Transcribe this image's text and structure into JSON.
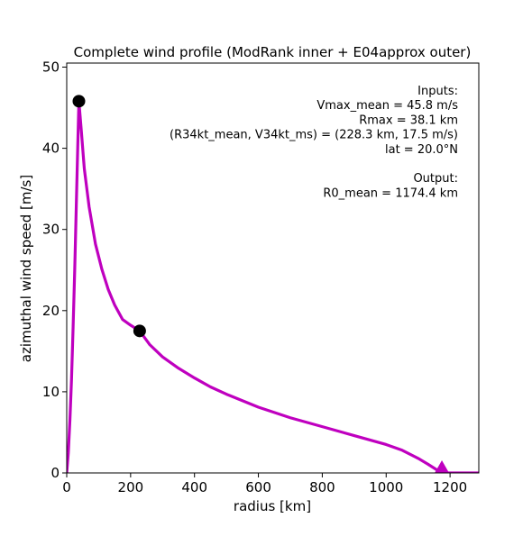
{
  "chart_data": {
    "type": "line",
    "title": "Complete wind profile (ModRank inner + E04approx outer)",
    "xlabel": "radius [km]",
    "ylabel": "azimuthal wind speed [m/s]",
    "xlim": [
      0,
      1290
    ],
    "ylim": [
      0,
      50.5
    ],
    "xticks": [
      0,
      200,
      400,
      600,
      800,
      1000,
      1200
    ],
    "yticks": [
      0,
      10,
      20,
      30,
      40,
      50
    ],
    "grid": false,
    "line_color": "#bf00bf",
    "marker_color": "#000000",
    "series": [
      {
        "x": [
          0,
          5,
          10,
          15,
          20,
          25,
          30,
          35,
          38.1,
          45,
          55,
          70,
          90,
          110,
          130,
          150,
          175,
          200,
          228.3,
          260,
          300,
          350,
          400,
          450,
          500,
          600,
          700,
          800,
          900,
          1000,
          1050,
          1100,
          1130,
          1160,
          1174.4,
          1200,
          1250,
          1290
        ],
        "y": [
          0,
          2.5,
          6.5,
          11.5,
          18,
          25,
          33,
          41,
          45.8,
          42.5,
          37.5,
          32.8,
          28.2,
          25.1,
          22.6,
          20.7,
          18.9,
          18.2,
          17.5,
          15.8,
          14.3,
          12.9,
          11.7,
          10.6,
          9.7,
          8.1,
          6.8,
          5.7,
          4.6,
          3.5,
          2.8,
          1.8,
          1.1,
          0.35,
          0,
          0,
          0,
          0
        ]
      }
    ],
    "points": [
      {
        "x": 38.1,
        "y": 45.8
      },
      {
        "x": 228.3,
        "y": 17.5
      }
    ],
    "arrow_point": {
      "x": 1174.4,
      "y": 0
    },
    "annotation_lines": [
      "Inputs:",
      "Vmax_mean = 45.8 m/s",
      "Rmax = 38.1 km",
      "(R34kt_mean, V34kt_ms) = (228.3 km, 17.5 m/s)",
      "lat = 20.0°N",
      "",
      "Output:",
      "R0_mean = 1174.4 km"
    ]
  }
}
